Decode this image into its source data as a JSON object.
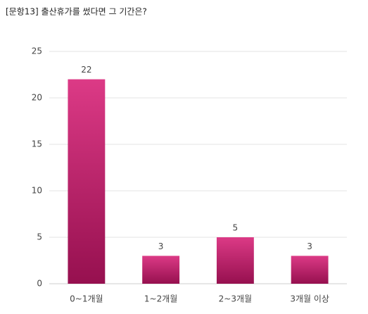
{
  "chart_data": {
    "type": "bar",
    "title": "[문항13] 출산휴가를 썼다면 그 기간은?",
    "categories": [
      "0~1개월",
      "1~2개월",
      "2~3개월",
      "3개월 이상"
    ],
    "values": [
      22,
      3,
      5,
      3
    ],
    "color": "#dc3a86",
    "ylim": [
      0,
      25
    ],
    "yticks": [
      0,
      5,
      10,
      15,
      20,
      25
    ],
    "grid": true
  }
}
